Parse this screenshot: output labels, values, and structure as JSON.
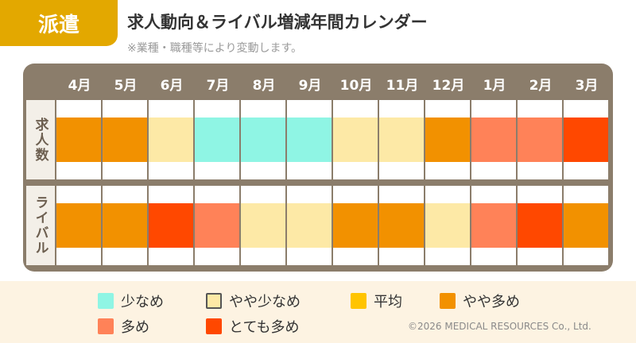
{
  "tag": "派遣",
  "title": "求人動向＆ライバル増減年間カレンダー",
  "note": "※業種・職種等により変動します。",
  "colors": {
    "少なめ": "#8ff5e4",
    "やや少なめ": "#fde9a6",
    "平均": "#ffc400",
    "やや多め": "#f29100",
    "多め": "#ff8258",
    "とても多め": "#ff4800"
  },
  "chart_data": {
    "type": "heatmap",
    "categories": [
      "4月",
      "5月",
      "6月",
      "7月",
      "8月",
      "9月",
      "10月",
      "11月",
      "12月",
      "1月",
      "2月",
      "3月"
    ],
    "rows": [
      {
        "label": "求人数",
        "values": [
          "やや多め",
          "やや多め",
          "やや少なめ",
          "少なめ",
          "少なめ",
          "少なめ",
          "やや少なめ",
          "やや少なめ",
          "やや多め",
          "多め",
          "多め",
          "とても多め"
        ]
      },
      {
        "label": "ライバル",
        "values": [
          "やや多め",
          "やや多め",
          "とても多め",
          "多め",
          "やや少なめ",
          "やや少なめ",
          "やや多め",
          "やや多め",
          "やや少なめ",
          "多め",
          "とても多め",
          "やや多め"
        ]
      }
    ]
  },
  "legend": [
    "少なめ",
    "やや少なめ",
    "平均",
    "やや多め",
    "多め",
    "とても多め"
  ],
  "copyright": "©2026 MEDICAL RESOURCES Co., Ltd."
}
